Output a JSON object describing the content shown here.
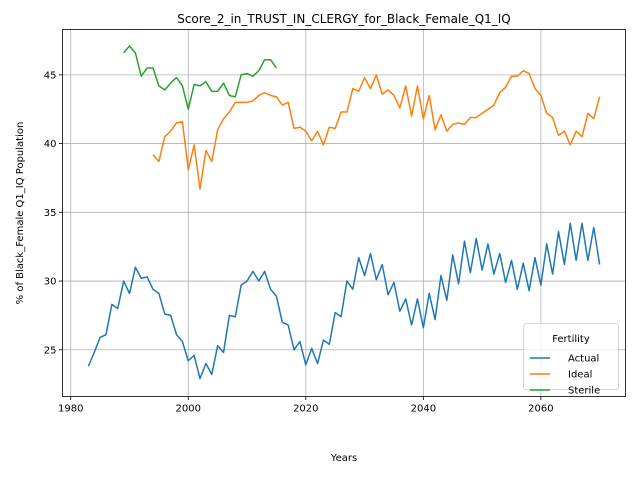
{
  "chart_data": {
    "type": "line",
    "title": "Score_2_in_TRUST_IN_CLERGY_for_Black_Female_Q1_IQ",
    "xlabel": "Years",
    "ylabel": "% of Black_Female Q1_IQ Population",
    "xlim": [
      1978.6,
      2074.4
    ],
    "ylim": [
      21.6,
      48.3
    ],
    "xticks": [
      1980,
      2000,
      2020,
      2040,
      2060
    ],
    "yticks": [
      25,
      30,
      35,
      40,
      45
    ],
    "grid": true,
    "legend": {
      "title": "Fertility",
      "placement": "lower-right"
    },
    "series": [
      {
        "name": "Actual",
        "color": "#1f77b4",
        "x": [
          1983,
          1984,
          1985,
          1986,
          1987,
          1988,
          1989,
          1990,
          1991,
          1992,
          1993,
          1994,
          1995,
          1996,
          1997,
          1998,
          1999,
          2000,
          2001,
          2002,
          2003,
          2004,
          2005,
          2006,
          2007,
          2008,
          2009,
          2010,
          2011,
          2012,
          2013,
          2014,
          2015,
          2016,
          2017,
          2018,
          2019,
          2020,
          2021,
          2022,
          2023,
          2024,
          2025,
          2026,
          2027,
          2028,
          2029,
          2030,
          2031,
          2032,
          2033,
          2034,
          2035,
          2036,
          2037,
          2038,
          2039,
          2040,
          2041,
          2042,
          2043,
          2044,
          2045,
          2046,
          2047,
          2048,
          2049,
          2050,
          2051,
          2052,
          2053,
          2054,
          2055,
          2056,
          2057,
          2058,
          2059,
          2060,
          2061,
          2062,
          2063,
          2064,
          2065,
          2066,
          2067,
          2068,
          2069,
          2070
        ],
        "values": [
          23.8,
          24.8,
          25.9,
          26.1,
          28.3,
          28.0,
          30.0,
          29.1,
          31.0,
          30.2,
          30.3,
          29.4,
          29.1,
          27.6,
          27.5,
          26.1,
          25.6,
          24.2,
          24.6,
          22.9,
          24.0,
          23.2,
          25.3,
          24.8,
          27.5,
          27.4,
          29.7,
          30.0,
          30.7,
          30.0,
          30.7,
          29.4,
          28.9,
          27.0,
          26.8,
          25.0,
          25.6,
          23.9,
          25.1,
          24.0,
          25.7,
          25.4,
          27.7,
          27.4,
          30.0,
          29.4,
          31.7,
          30.4,
          32.0,
          30.1,
          31.2,
          29.0,
          29.9,
          27.8,
          28.7,
          26.8,
          28.7,
          26.6,
          29.1,
          27.2,
          30.4,
          28.6,
          31.9,
          29.8,
          32.9,
          30.6,
          33.1,
          30.8,
          32.7,
          30.5,
          32.0,
          29.9,
          31.5,
          29.4,
          31.3,
          29.3,
          31.7,
          29.7,
          32.7,
          30.5,
          33.6,
          31.2,
          34.2,
          31.5,
          34.2,
          31.5,
          33.9,
          31.2
        ]
      },
      {
        "name": "Ideal",
        "color": "#ff7f0e",
        "x": [
          1994,
          1995,
          1996,
          1997,
          1998,
          1999,
          2000,
          2001,
          2002,
          2003,
          2004,
          2005,
          2006,
          2007,
          2008,
          2009,
          2010,
          2011,
          2012,
          2013,
          2014,
          2015,
          2016,
          2017,
          2018,
          2019,
          2020,
          2021,
          2022,
          2023,
          2024,
          2025,
          2026,
          2027,
          2028,
          2029,
          2030,
          2031,
          2032,
          2033,
          2034,
          2035,
          2036,
          2037,
          2038,
          2039,
          2040,
          2041,
          2042,
          2043,
          2044,
          2045,
          2046,
          2047,
          2048,
          2049,
          2050,
          2051,
          2052,
          2053,
          2054,
          2055,
          2056,
          2057,
          2058,
          2059,
          2060,
          2061,
          2062,
          2063,
          2064,
          2065,
          2066,
          2067,
          2068,
          2069,
          2070
        ],
        "values": [
          39.2,
          38.7,
          40.5,
          40.9,
          41.5,
          41.6,
          38.1,
          39.9,
          36.7,
          39.5,
          38.7,
          41.0,
          41.8,
          42.3,
          43.0,
          43.0,
          43.0,
          43.1,
          43.5,
          43.7,
          43.5,
          43.4,
          42.8,
          43.0,
          41.1,
          41.2,
          40.9,
          40.2,
          40.9,
          39.9,
          41.2,
          41.1,
          42.3,
          42.3,
          44.0,
          43.8,
          44.8,
          44.0,
          45.0,
          43.6,
          43.9,
          43.5,
          42.6,
          44.2,
          42.0,
          44.2,
          41.8,
          43.5,
          41.0,
          42.1,
          40.9,
          41.4,
          41.5,
          41.4,
          41.9,
          41.9,
          42.2,
          42.5,
          42.8,
          43.7,
          44.1,
          44.9,
          44.9,
          45.3,
          45.1,
          44.0,
          43.5,
          42.2,
          41.9,
          40.6,
          40.9,
          39.9,
          40.9,
          40.5,
          42.2,
          41.8,
          43.4
        ]
      },
      {
        "name": "Sterile",
        "color": "#2ca02c",
        "x": [
          1989,
          1990,
          1991,
          1992,
          1993,
          1994,
          1995,
          1996,
          1997,
          1998,
          1999,
          2000,
          2001,
          2002,
          2003,
          2004,
          2005,
          2006,
          2007,
          2008,
          2009,
          2010,
          2011,
          2012,
          2013,
          2014,
          2015
        ],
        "values": [
          46.6,
          47.1,
          46.6,
          44.9,
          45.5,
          45.5,
          44.2,
          43.9,
          44.4,
          44.8,
          44.2,
          42.5,
          44.3,
          44.2,
          44.5,
          43.8,
          43.8,
          44.4,
          43.5,
          43.4,
          45.0,
          45.1,
          44.9,
          45.3,
          46.1,
          46.1,
          45.5
        ]
      }
    ]
  }
}
